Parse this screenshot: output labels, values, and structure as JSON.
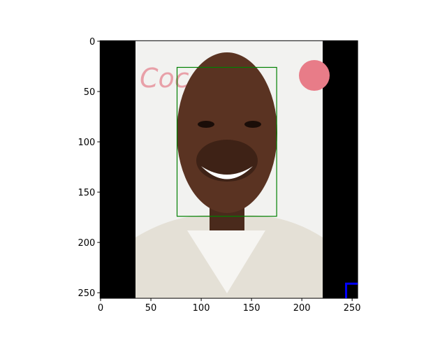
{
  "chart_data": {
    "type": "image",
    "xlim": [
      -0.5,
      255.5
    ],
    "ylim": [
      255.5,
      -0.5
    ],
    "xticks": [
      0,
      50,
      100,
      150,
      200,
      250
    ],
    "yticks": [
      0,
      50,
      100,
      150,
      200,
      250
    ],
    "boxes": [
      {
        "color": "#008000",
        "x0": 76,
        "y0": 26,
        "x1": 175,
        "y1": 174
      },
      {
        "color": "#0000ff",
        "x0": 244,
        "y0": 241,
        "x1": 262,
        "y1": 262
      }
    ]
  }
}
